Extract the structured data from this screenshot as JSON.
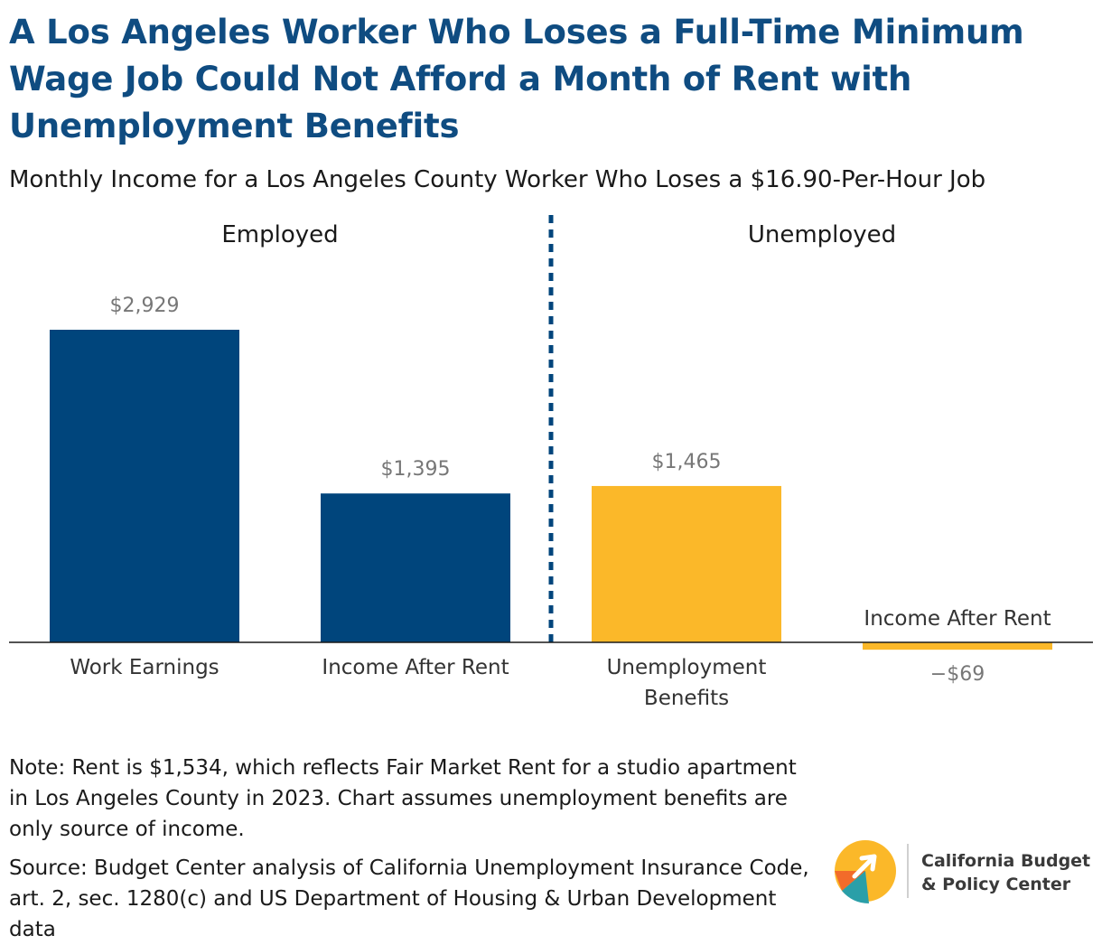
{
  "title": "A Los Angeles Worker Who Loses a Full-Time Minimum Wage Job Could Not Afford a Month of Rent with Unemployment Benefits",
  "subtitle": "Monthly Income for a Los Angeles County Worker Who Loses a $16.90-Per-Hour Job",
  "colors": {
    "employed": "#00457c",
    "unemployed": "#fbb829",
    "divider": "#00457c",
    "title": "#0f4c81",
    "value_label": "#777777"
  },
  "chart_data": {
    "type": "bar",
    "groups": [
      {
        "label": "Employed",
        "categories": [
          "Work Earnings",
          "Income After Rent"
        ]
      },
      {
        "label": "Unemployed",
        "categories": [
          "Unemployment Benefits",
          "Income After Rent"
        ]
      }
    ],
    "bars": [
      {
        "category": "Work Earnings",
        "group": "Employed",
        "value": 2929,
        "value_label": "$2,929",
        "category_lines": [
          "Work Earnings"
        ]
      },
      {
        "category": "Income After Rent",
        "group": "Employed",
        "value": 1395,
        "value_label": "$1,395",
        "category_lines": [
          "Income After Rent"
        ]
      },
      {
        "category": "Unemployment Benefits",
        "group": "Unemployed",
        "value": 1465,
        "value_label": "$1,465",
        "category_lines": [
          "Unemployment",
          "Benefits"
        ]
      },
      {
        "category": "Income After Rent",
        "group": "Unemployed",
        "value": -69,
        "value_label": "−$69",
        "category_lines": [
          "Income After Rent"
        ]
      }
    ],
    "ylim": [
      -69,
      2929
    ],
    "grid": false
  },
  "note": "Note: Rent is $1,534, which reflects Fair Market Rent for a studio apartment in Los Angeles County in 2023. Chart assumes unemployment benefits are only source of income.",
  "source": "Source: Budget Center analysis of California Unemployment Insurance Code, art. 2, sec. 1280(c) and US Department of Housing & Urban Development data",
  "logo": {
    "line1": "California Budget",
    "line2": "& Policy Center"
  }
}
